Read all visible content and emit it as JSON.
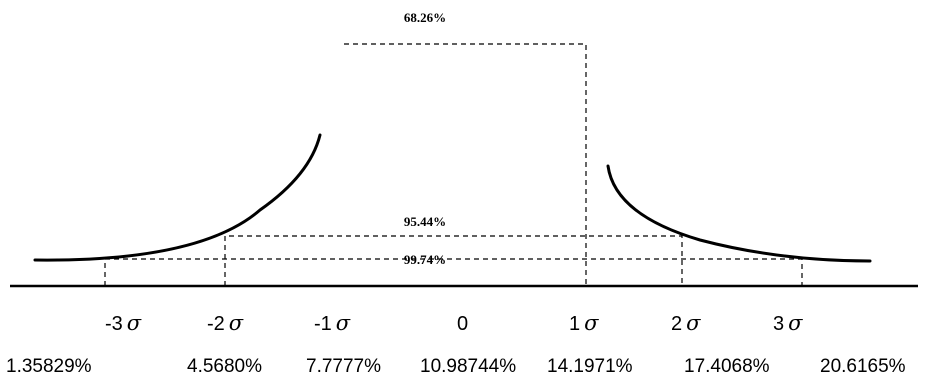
{
  "brackets": {
    "one_sigma": "68.26%",
    "two_sigma": "95.44%",
    "three_sigma": "99.74%"
  },
  "axis_labels": [
    {
      "prefix": "-3",
      "symbol": "σ"
    },
    {
      "prefix": "-2",
      "symbol": "σ"
    },
    {
      "prefix": "-1",
      "symbol": "σ"
    },
    {
      "prefix": "0",
      "symbol": ""
    },
    {
      "prefix": "1",
      "symbol": "σ"
    },
    {
      "prefix": "2",
      "symbol": "σ"
    },
    {
      "prefix": "3",
      "symbol": "σ"
    }
  ],
  "bottom_values": [
    "1.35829%",
    "4.5680%",
    "7.7777%",
    "10.98744%",
    "14.1971%",
    "17.4068%",
    "20.6165%"
  ]
}
